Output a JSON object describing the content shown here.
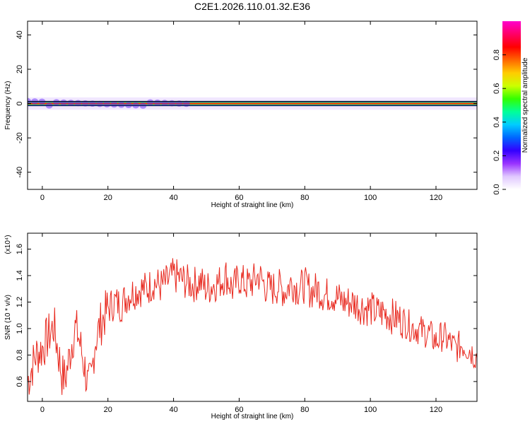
{
  "page_title": "C2E1.2026.110.01.32.E36",
  "chart_data": [
    {
      "type": "heatmap",
      "title": "C2E1.2026.110.01.32.E36",
      "xlabel": "Height of straight line (km)",
      "ylabel": "Frequency (Hz)",
      "xlim": [
        -4.5,
        132.5
      ],
      "ylim": [
        -50,
        48
      ],
      "x_ticks": [
        "0",
        "20",
        "40",
        "60",
        "80",
        "100",
        "120"
      ],
      "y_ticks": [
        "40",
        "20",
        "0",
        "-20",
        "-40"
      ],
      "dominant_frequency_hz": 0,
      "band_halfwidth_hz": 2,
      "colorbar": {
        "label": "Normalized spectral amplitude",
        "range": [
          0,
          1
        ],
        "ticks": [
          "0.0",
          "0.2",
          "0.4",
          "0.6",
          "0.8"
        ],
        "colors": [
          "#ffffff",
          "#e0c8ff",
          "#9933ff",
          "#3300ff",
          "#0066ff",
          "#00ccff",
          "#00ff99",
          "#33ff00",
          "#ccff00",
          "#ffcc00",
          "#ff6600",
          "#ff0000",
          "#ff0066",
          "#ff00cc"
        ]
      }
    },
    {
      "type": "line",
      "xlabel": "Height of straight line (km)",
      "ylabel": "SNR (10 * v/v)",
      "y_scale_label": "(x10⁴)",
      "xlim": [
        -4.5,
        132.5
      ],
      "ylim": [
        0.45,
        1.72
      ],
      "x_ticks": [
        "0",
        "20",
        "40",
        "60",
        "80",
        "100",
        "120"
      ],
      "y_ticks": [
        "0.6",
        "0.8",
        "1.0",
        "1.2",
        "1.4",
        "1.6"
      ],
      "line_color": "#e8281e",
      "series": [
        {
          "x": [
            -4.5,
            -3,
            -2,
            0,
            2,
            3.5,
            5,
            6,
            7,
            8,
            9,
            10,
            11,
            12,
            13,
            14,
            15,
            16,
            18,
            20,
            22,
            24,
            26,
            28,
            30,
            32,
            34,
            36,
            38,
            40,
            42,
            44,
            46,
            48,
            50,
            52,
            54,
            56,
            58,
            60,
            62,
            64,
            66,
            68,
            70,
            72,
            74,
            76,
            78,
            80,
            82,
            84,
            86,
            88,
            90,
            92,
            94,
            96,
            98,
            100,
            102,
            104,
            106,
            108,
            110,
            112,
            114,
            116,
            118,
            120,
            122,
            124,
            126,
            128,
            130,
            131,
            132,
            132.5
          ],
          "y": [
            0.6,
            0.72,
            0.8,
            0.85,
            0.95,
            1.02,
            0.8,
            0.65,
            0.62,
            0.75,
            0.9,
            1.0,
            0.95,
            0.82,
            0.7,
            0.55,
            0.62,
            0.9,
            1.05,
            1.15,
            1.2,
            1.18,
            1.25,
            1.28,
            1.3,
            1.3,
            1.35,
            1.32,
            1.35,
            1.4,
            1.38,
            1.35,
            1.33,
            1.36,
            1.3,
            1.33,
            1.35,
            1.4,
            1.3,
            1.38,
            1.33,
            1.35,
            1.4,
            1.32,
            1.3,
            1.32,
            1.28,
            1.35,
            1.3,
            1.33,
            1.28,
            1.3,
            1.25,
            1.26,
            1.23,
            1.2,
            1.2,
            1.18,
            1.16,
            1.15,
            1.12,
            1.12,
            1.1,
            1.08,
            1.06,
            1.02,
            1.0,
            0.98,
            0.96,
            0.9,
            0.95,
            0.9,
            0.85,
            0.88,
            0.85,
            0.82,
            0.8,
            0.78
          ]
        }
      ]
    }
  ]
}
